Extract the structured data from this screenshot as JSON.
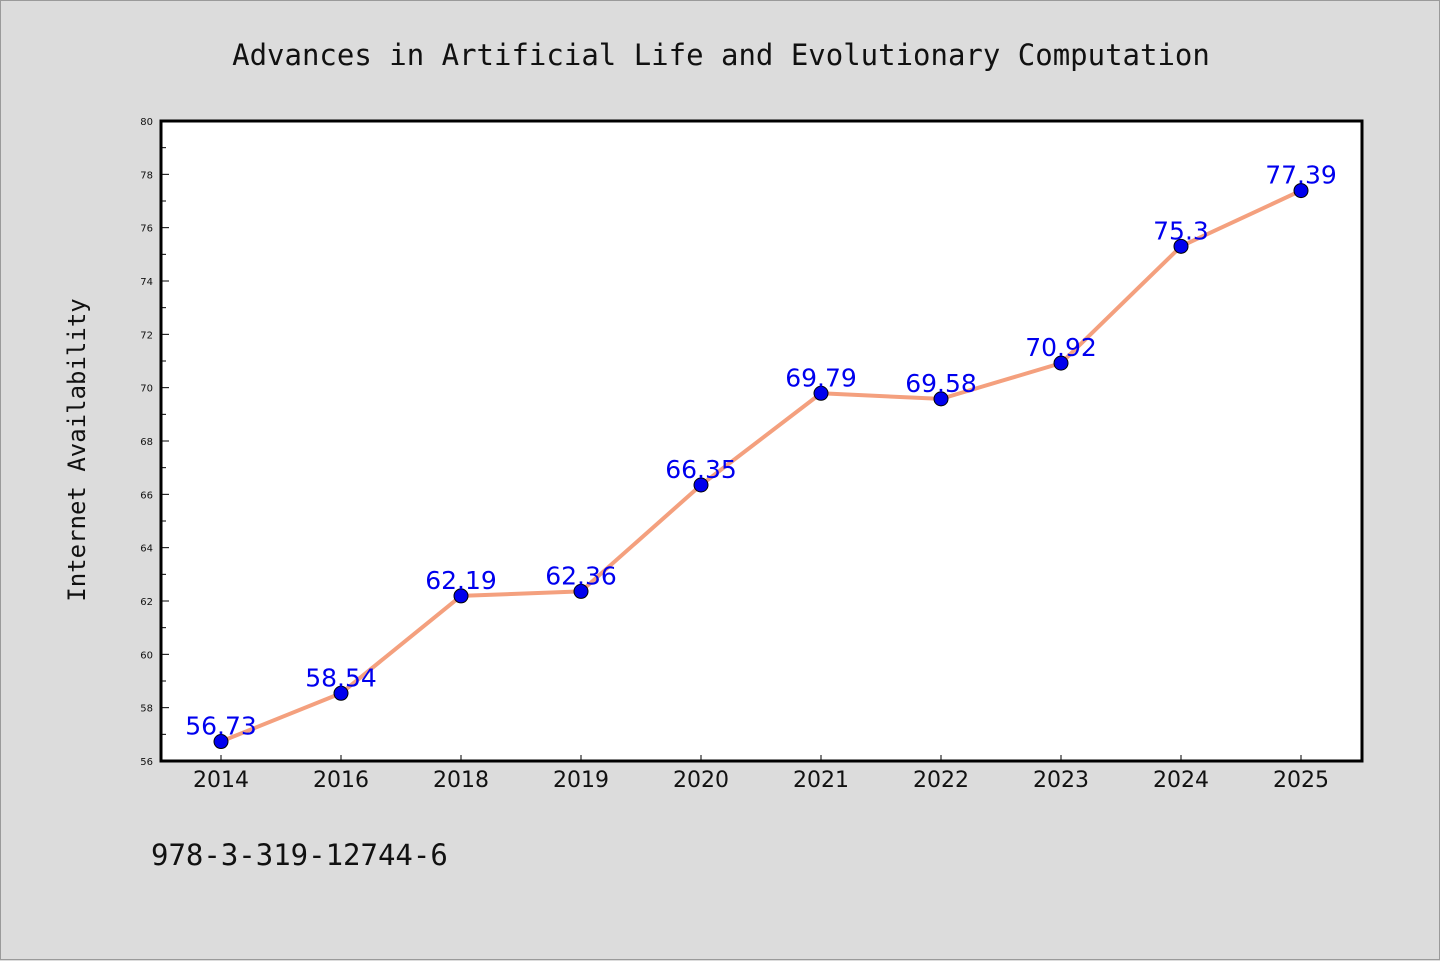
{
  "chart_data": {
    "type": "line",
    "title": "Advances in Artificial Life and Evolutionary Computation",
    "xlabel": "",
    "ylabel": "Internet Availability",
    "categories": [
      "2014",
      "2016",
      "2018",
      "2019",
      "2020",
      "2021",
      "2022",
      "2023",
      "2024",
      "2025"
    ],
    "series": [
      {
        "values": [
          56.73,
          58.54,
          62.19,
          62.36,
          66.35,
          69.79,
          69.58,
          70.92,
          75.3,
          77.39
        ],
        "data_labels": [
          "56.73",
          "58.54",
          "62.19",
          "62.36",
          "66.35",
          "69.79",
          "69.58",
          "70.92",
          "75.3",
          "77.39"
        ]
      }
    ],
    "ylim": [
      56,
      80
    ],
    "yticks": [
      "56",
      "58",
      "60",
      "62",
      "64",
      "66",
      "68",
      "70",
      "72",
      "74",
      "76",
      "78",
      "80"
    ],
    "grid": false,
    "legend": "none",
    "colors": {
      "line": "#f4a07e",
      "marker": "#0000ee",
      "label": "#0000ee",
      "background": "#dcdcdc",
      "plot_background": "#ffffff"
    }
  },
  "footer_text": "978-3-319-12744-6"
}
